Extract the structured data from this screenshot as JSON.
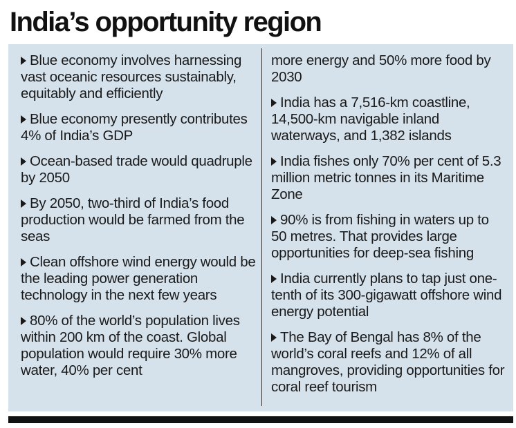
{
  "title": "India’s opportunity region",
  "left_items": [
    "Blue economy involves harnessing vast oceanic resources sustainably, equitably and efficiently",
    "Blue economy presently contributes 4% of India’s GDP",
    "Ocean-based trade would quadruple by 2050",
    "By 2050, two-third of India’s food production would be farmed from the seas",
    "Clean offshore wind energy would be the leading power generation technology in the next few years",
    "80% of the world’s population lives within 200 km of the coast. Global population would require 30% more water, 40% per cent"
  ],
  "right_continuation": "more energy and 50% more food by 2030",
  "right_items": [
    "India has a 7,516-km coastline, 14,500-km navigable inland waterways, and 1,382 islands",
    "India fishes only 70% per cent of 5.3 million metric tonnes in its Maritime Zone",
    "90% is from fishing in waters up to 50 metres. That provides large opportunities for deep-sea fishing",
    "India currently plans to tap just one-tenth of its 300-gigawatt offshore wind energy potential",
    "The Bay of Bengal has 8% of the world’s coral reefs and 12% of all mangroves, providing opportunities for coral reef tourism"
  ]
}
